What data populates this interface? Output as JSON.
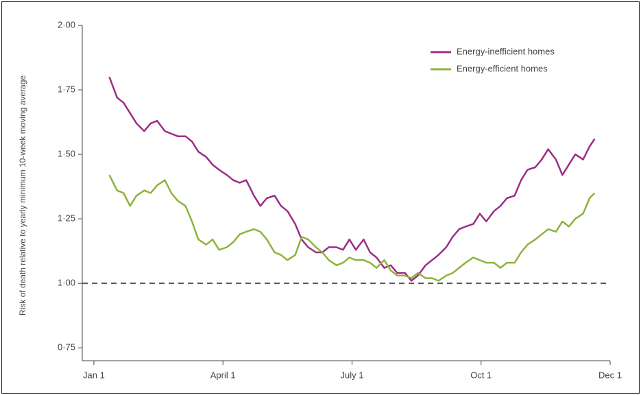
{
  "chart_data": {
    "type": "line",
    "y_label": "Risk of death relative to yearly minimum 10-week moving average",
    "x": [
      0.12,
      0.18,
      0.23,
      0.28,
      0.33,
      0.39,
      0.44,
      0.49,
      0.55,
      0.6,
      0.65,
      0.71,
      0.76,
      0.81,
      0.87,
      0.92,
      0.97,
      1.03,
      1.08,
      1.13,
      1.18,
      1.24,
      1.29,
      1.34,
      1.4,
      1.45,
      1.5,
      1.56,
      1.61,
      1.66,
      1.72,
      1.77,
      1.82,
      1.88,
      1.93,
      1.98,
      2.03,
      2.09,
      2.14,
      2.19,
      2.25,
      2.3,
      2.35,
      2.41,
      2.46,
      2.51,
      2.57,
      2.62,
      2.67,
      2.73,
      2.78,
      2.83,
      2.88,
      2.94,
      2.99,
      3.04,
      3.1,
      3.15,
      3.2,
      3.26,
      3.31,
      3.36,
      3.42,
      3.47,
      3.52,
      3.58,
      3.63,
      3.68,
      3.73,
      3.79,
      3.84,
      3.88
    ],
    "series": [
      {
        "name": "Energy-inefficient homes",
        "color": "#9b2d86",
        "values": [
          1.8,
          1.72,
          1.7,
          1.66,
          1.62,
          1.59,
          1.62,
          1.63,
          1.59,
          1.58,
          1.57,
          1.57,
          1.55,
          1.51,
          1.49,
          1.46,
          1.44,
          1.42,
          1.4,
          1.39,
          1.4,
          1.34,
          1.3,
          1.33,
          1.34,
          1.3,
          1.28,
          1.23,
          1.17,
          1.14,
          1.12,
          1.12,
          1.14,
          1.14,
          1.13,
          1.17,
          1.13,
          1.17,
          1.12,
          1.1,
          1.06,
          1.07,
          1.04,
          1.04,
          1.01,
          1.03,
          1.07,
          1.09,
          1.11,
          1.14,
          1.18,
          1.21,
          1.22,
          1.23,
          1.27,
          1.24,
          1.28,
          1.3,
          1.33,
          1.34,
          1.4,
          1.44,
          1.45,
          1.48,
          1.52,
          1.48,
          1.42,
          1.46,
          1.5,
          1.48,
          1.53,
          1.56
        ]
      },
      {
        "name": "Energy-efficient homes",
        "color": "#8db33a",
        "values": [
          1.42,
          1.36,
          1.35,
          1.3,
          1.34,
          1.36,
          1.35,
          1.38,
          1.4,
          1.35,
          1.32,
          1.3,
          1.24,
          1.17,
          1.15,
          1.17,
          1.13,
          1.14,
          1.16,
          1.19,
          1.2,
          1.21,
          1.2,
          1.17,
          1.12,
          1.11,
          1.09,
          1.11,
          1.18,
          1.17,
          1.14,
          1.12,
          1.09,
          1.07,
          1.08,
          1.1,
          1.09,
          1.09,
          1.08,
          1.06,
          1.09,
          1.05,
          1.03,
          1.03,
          1.02,
          1.04,
          1.02,
          1.02,
          1.01,
          1.03,
          1.04,
          1.06,
          1.08,
          1.1,
          1.09,
          1.08,
          1.08,
          1.06,
          1.08,
          1.08,
          1.12,
          1.15,
          1.17,
          1.19,
          1.21,
          1.2,
          1.24,
          1.22,
          1.25,
          1.27,
          1.33,
          1.35
        ]
      }
    ],
    "xlim": [
      -0.09,
      4
    ],
    "xticks": [
      {
        "value": 0,
        "label": "Jan 1"
      },
      {
        "value": 1,
        "label": "April 1"
      },
      {
        "value": 2,
        "label": "July 1"
      },
      {
        "value": 3,
        "label": "Oct 1"
      },
      {
        "value": 4,
        "label": "Dec 1"
      }
    ],
    "ylim": [
      0.7,
      2.0
    ],
    "yticks": [
      {
        "value": 0.75,
        "label": "0·75"
      },
      {
        "value": 1.0,
        "label": "1·00"
      },
      {
        "value": 1.25,
        "label": "1·25"
      },
      {
        "value": 1.5,
        "label": "1·50"
      },
      {
        "value": 1.75,
        "label": "1·75"
      },
      {
        "value": 2.0,
        "label": "2·00"
      }
    ],
    "reference_line": 1.0,
    "legend": "top-right"
  }
}
